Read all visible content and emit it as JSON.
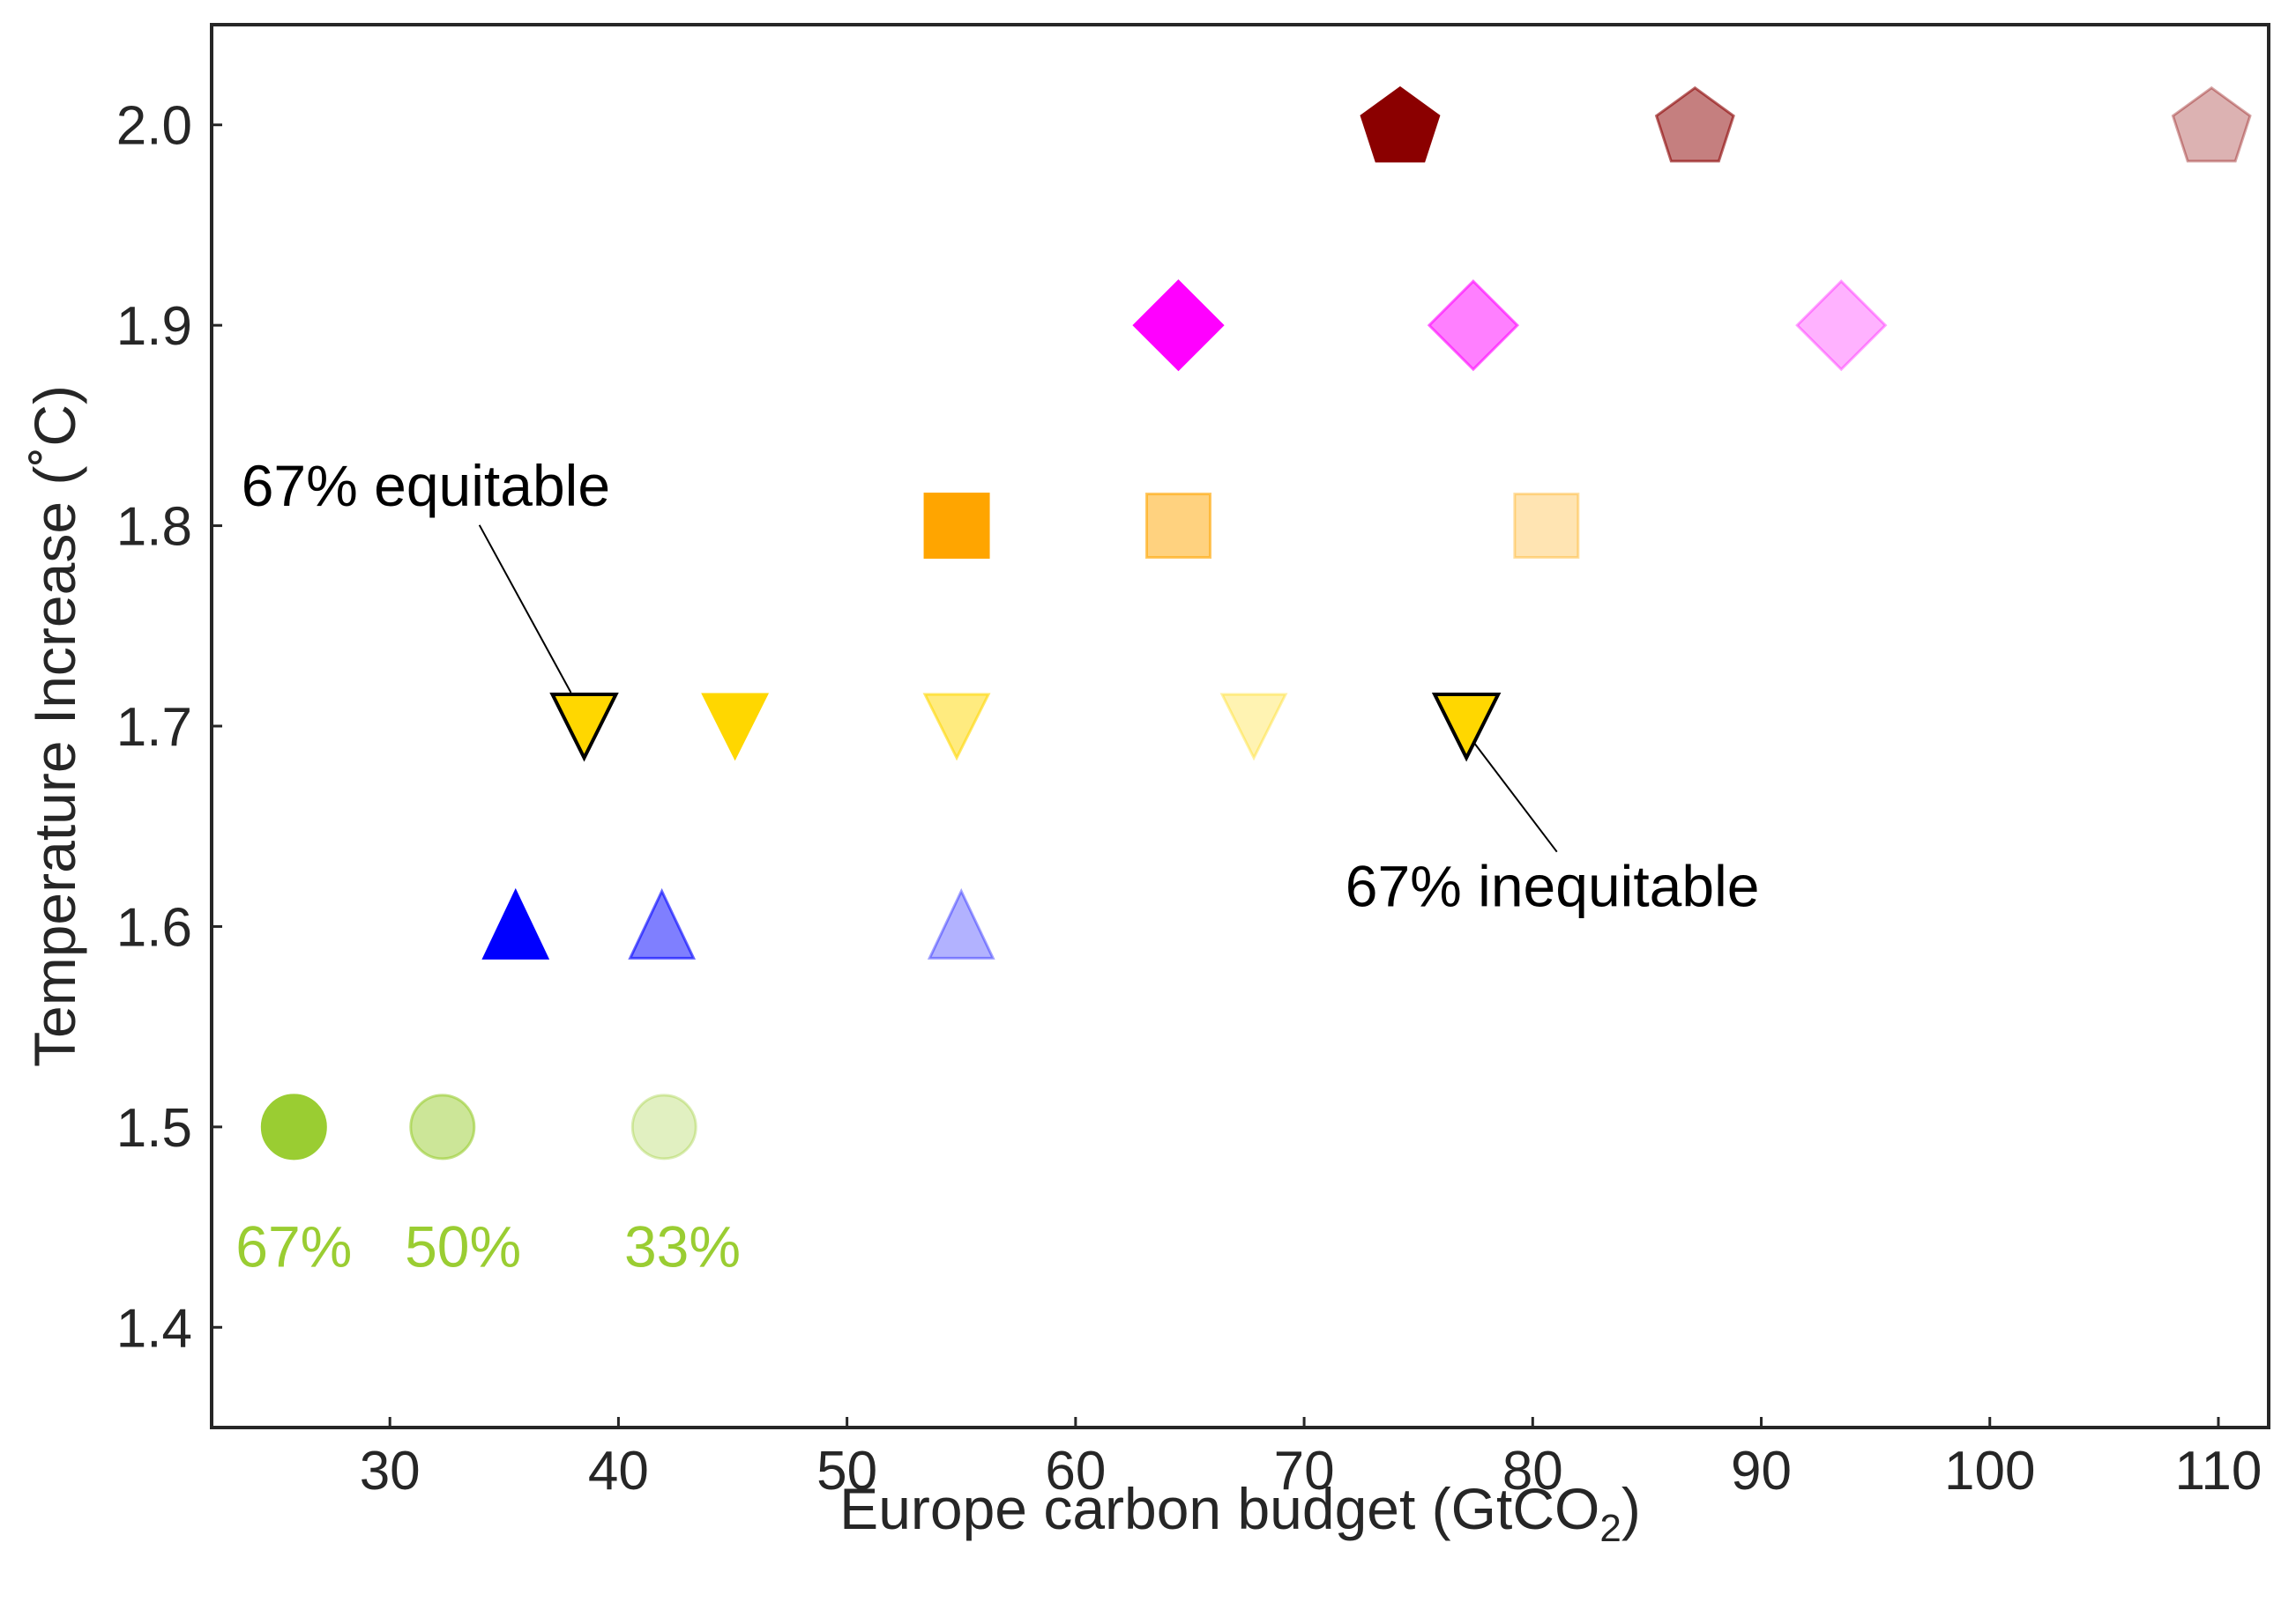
{
  "chart_data": {
    "type": "scatter",
    "xlabel_prefix": "Europe carbon budget (GtCO",
    "xlabel_sub": "2",
    "xlabel_suffix": ")",
    "ylabel": "Temperature Increase (˚C)",
    "xlim": [
      22.2,
      112.2
    ],
    "ylim": [
      1.35,
      2.05
    ],
    "xticks": [
      30,
      40,
      50,
      60,
      70,
      80,
      90,
      100,
      110
    ],
    "yticks": [
      1.4,
      1.5,
      1.6,
      1.7,
      1.8,
      1.9,
      2.0
    ],
    "grid": false,
    "points": [
      {
        "x": 25.8,
        "y": 1.5,
        "marker": "circle",
        "color": "#9acd32",
        "alpha": 1.0
      },
      {
        "x": 32.3,
        "y": 1.5,
        "marker": "circle",
        "color": "#9acd32",
        "alpha": 0.5
      },
      {
        "x": 42.0,
        "y": 1.5,
        "marker": "circle",
        "color": "#9acd32",
        "alpha": 0.3
      },
      {
        "x": 35.5,
        "y": 1.6,
        "marker": "triangle-up",
        "color": "#0000ff",
        "alpha": 1.0
      },
      {
        "x": 41.9,
        "y": 1.6,
        "marker": "triangle-up",
        "color": "#0000ff",
        "alpha": 0.5
      },
      {
        "x": 55.0,
        "y": 1.6,
        "marker": "triangle-up",
        "color": "#0000ff",
        "alpha": 0.3
      },
      {
        "x": 38.5,
        "y": 1.7,
        "marker": "triangle-down",
        "color": "#ffd700",
        "alpha": 1.0,
        "edge": "#000000"
      },
      {
        "x": 45.1,
        "y": 1.7,
        "marker": "triangle-down",
        "color": "#ffd700",
        "alpha": 1.0
      },
      {
        "x": 54.8,
        "y": 1.7,
        "marker": "triangle-down",
        "color": "#ffd700",
        "alpha": 0.5
      },
      {
        "x": 67.8,
        "y": 1.7,
        "marker": "triangle-down",
        "color": "#ffd700",
        "alpha": 0.3
      },
      {
        "x": 77.1,
        "y": 1.7,
        "marker": "triangle-down",
        "color": "#ffd700",
        "alpha": 1.0,
        "edge": "#000000"
      },
      {
        "x": 54.8,
        "y": 1.8,
        "marker": "square",
        "color": "#ffa500",
        "alpha": 1.0
      },
      {
        "x": 64.5,
        "y": 1.8,
        "marker": "square",
        "color": "#ffa500",
        "alpha": 0.5
      },
      {
        "x": 80.6,
        "y": 1.8,
        "marker": "square",
        "color": "#ffa500",
        "alpha": 0.3
      },
      {
        "x": 64.5,
        "y": 1.9,
        "marker": "diamond",
        "color": "#ff00ff",
        "alpha": 1.0
      },
      {
        "x": 77.4,
        "y": 1.9,
        "marker": "diamond",
        "color": "#ff00ff",
        "alpha": 0.5
      },
      {
        "x": 93.5,
        "y": 1.9,
        "marker": "diamond",
        "color": "#ff00ff",
        "alpha": 0.3
      },
      {
        "x": 74.2,
        "y": 2.0,
        "marker": "pentagon",
        "color": "#8b0000",
        "alpha": 1.0
      },
      {
        "x": 87.1,
        "y": 2.0,
        "marker": "pentagon",
        "color": "#8b0000",
        "alpha": 0.5
      },
      {
        "x": 109.7,
        "y": 2.0,
        "marker": "pentagon",
        "color": "#8b0000",
        "alpha": 0.3
      }
    ],
    "annotations": [
      {
        "text": "67% equitable",
        "target_x": 38.5,
        "target_y": 1.7,
        "label_x": 23.5,
        "label_y": 1.81
      },
      {
        "text": "67% inequitable",
        "target_x": 77.1,
        "target_y": 1.7,
        "label_x": 71.8,
        "label_y": 1.61
      }
    ],
    "probability_labels": [
      {
        "text": "67%",
        "x": 25.8,
        "y": 1.44,
        "color": "#9acd32",
        "alpha": 1.0
      },
      {
        "text": "50%",
        "x": 33.2,
        "y": 1.44,
        "color": "#9acd32",
        "alpha": 1.0
      },
      {
        "text": "33%",
        "x": 42.8,
        "y": 1.44,
        "color": "#9acd32",
        "alpha": 1.0
      }
    ]
  }
}
